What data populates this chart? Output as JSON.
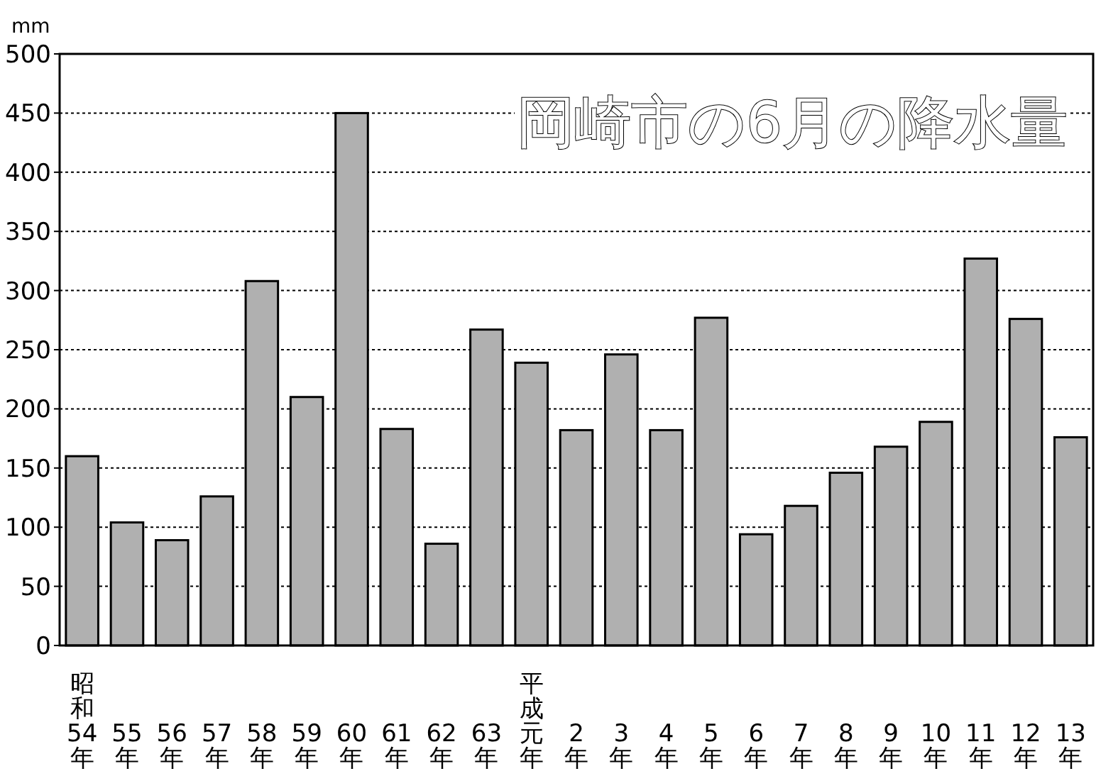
{
  "chart_data": {
    "type": "bar",
    "title": "岡崎市の6月の降水量",
    "ylabel": "mm",
    "categories": [
      "昭和54年",
      "55年",
      "56年",
      "57年",
      "58年",
      "59年",
      "60年",
      "61年",
      "62年",
      "63年",
      "平成元年",
      "2年",
      "3年",
      "4年",
      "5年",
      "6年",
      "7年",
      "8年",
      "9年",
      "10年",
      "11年",
      "12年",
      "13年"
    ],
    "values": [
      160,
      104,
      89,
      126,
      308,
      210,
      450,
      183,
      86,
      267,
      239,
      182,
      246,
      182,
      277,
      94,
      118,
      146,
      168,
      189,
      327,
      276,
      176
    ],
    "color": "#b0b0b0",
    "ylim": [
      0,
      500
    ],
    "yticks": [
      0,
      50,
      100,
      150,
      200,
      250,
      300,
      350,
      400,
      450,
      500
    ],
    "grid": "y"
  }
}
